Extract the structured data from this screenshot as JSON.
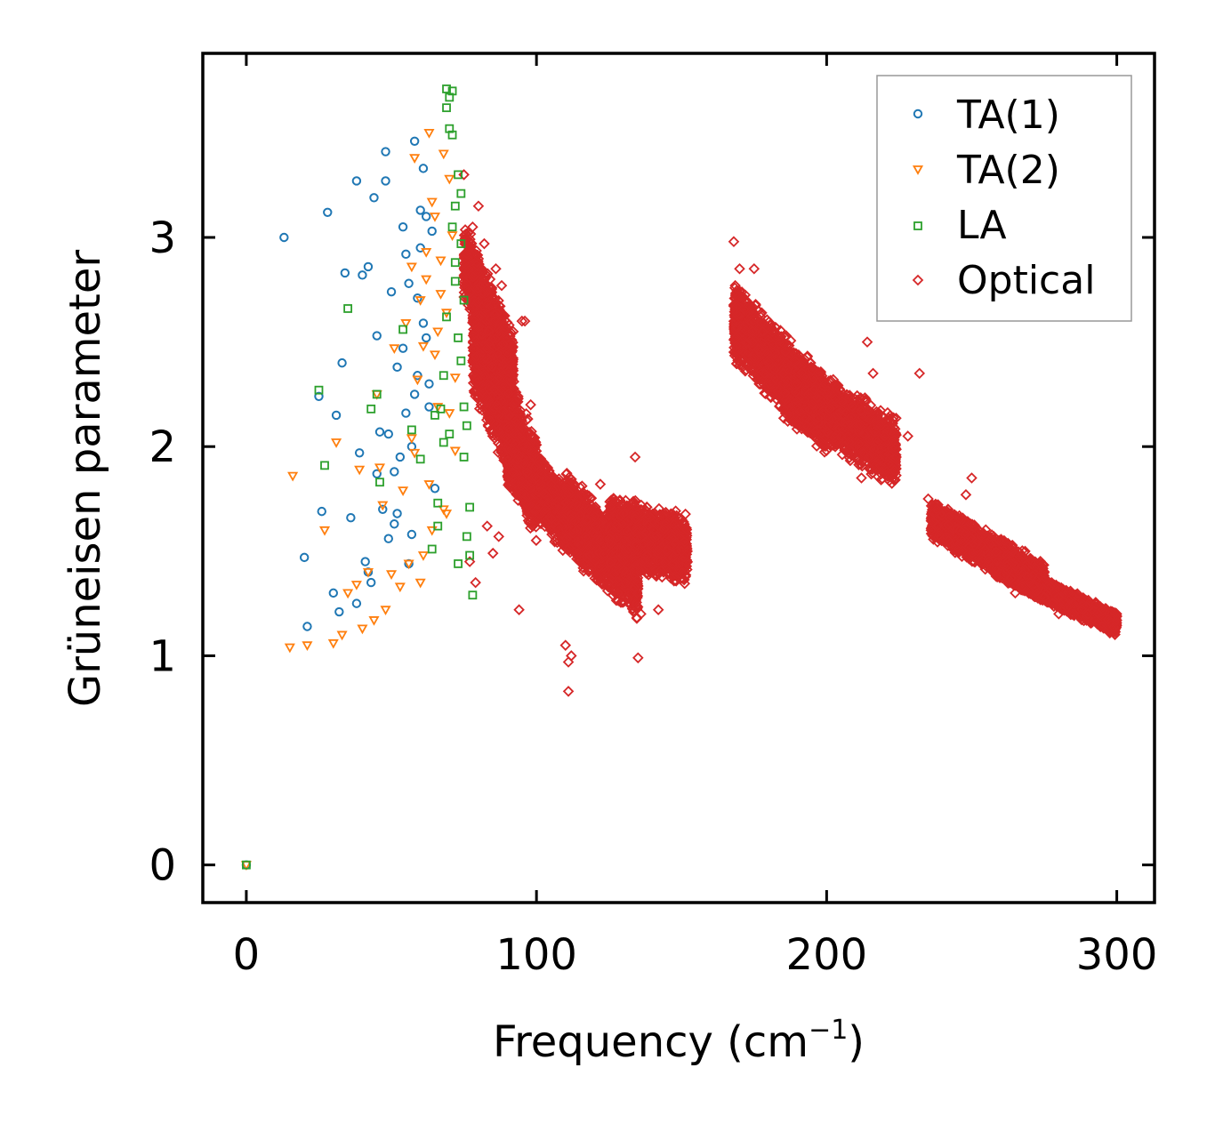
{
  "chart_data": {
    "type": "scatter",
    "title": "",
    "xlabel": "Frequency (cm",
    "xlabel_sup": "−1",
    "xlabel_end": ")",
    "ylabel": "Grüneisen parameter",
    "xlim": [
      -15,
      313
    ],
    "ylim": [
      -0.18,
      3.88
    ],
    "xticks": [
      0,
      100,
      200,
      300
    ],
    "xtick_labels": [
      "0",
      "100",
      "200",
      "300"
    ],
    "yticks": [
      0,
      1,
      2,
      3
    ],
    "ytick_labels": [
      "0",
      "1",
      "2",
      "3"
    ],
    "grid": false,
    "legend_position": "top-right",
    "series": [
      {
        "name": "TA(1)",
        "marker": "circle",
        "color": "#1f77b4",
        "x": [
          0,
          13,
          20,
          21,
          25,
          26,
          28,
          30,
          31,
          32,
          33,
          34,
          36,
          38,
          39,
          40,
          41,
          42,
          43,
          44,
          45,
          46,
          47,
          48,
          49,
          50,
          51,
          52,
          53,
          54,
          55,
          56,
          57,
          58,
          59,
          60,
          61,
          62,
          63,
          64,
          38,
          42,
          45,
          48,
          51,
          54,
          57,
          60,
          63,
          52,
          56,
          61,
          65,
          49,
          58,
          62,
          55,
          59
        ],
        "y": [
          0.0,
          3.0,
          1.47,
          1.14,
          2.24,
          1.69,
          3.12,
          1.3,
          2.15,
          1.21,
          2.4,
          2.83,
          1.66,
          3.27,
          1.97,
          2.82,
          1.45,
          2.86,
          1.35,
          3.19,
          1.87,
          2.07,
          1.7,
          3.41,
          1.56,
          2.74,
          1.88,
          2.38,
          1.95,
          2.47,
          2.16,
          2.78,
          1.58,
          3.46,
          2.34,
          2.95,
          3.33,
          3.1,
          2.3,
          3.03,
          1.25,
          1.4,
          2.53,
          3.27,
          1.63,
          3.05,
          2.0,
          3.13,
          2.19,
          1.68,
          1.44,
          2.59,
          1.8,
          2.06,
          2.25,
          2.52,
          2.92,
          2.71
        ]
      },
      {
        "name": "TA(2)",
        "marker": "triangle-down",
        "color": "#ff7f0e",
        "x": [
          0,
          15,
          16,
          21,
          27,
          30,
          31,
          33,
          35,
          38,
          39,
          40,
          42,
          44,
          45,
          46,
          47,
          48,
          50,
          51,
          53,
          54,
          55,
          56,
          57,
          58,
          59,
          60,
          61,
          62,
          63,
          64,
          65,
          66,
          67,
          68,
          69,
          70,
          71,
          72,
          60,
          62,
          64,
          66,
          68,
          70,
          58,
          61,
          65,
          69,
          72,
          67,
          63,
          57
        ],
        "y": [
          0.0,
          1.04,
          1.86,
          1.05,
          1.6,
          1.06,
          2.02,
          1.1,
          1.3,
          1.34,
          1.89,
          1.13,
          1.4,
          1.17,
          2.25,
          1.9,
          1.72,
          1.22,
          1.39,
          2.47,
          1.33,
          1.79,
          2.59,
          1.44,
          2.04,
          3.38,
          2.32,
          2.7,
          1.48,
          2.93,
          1.82,
          3.17,
          2.44,
          2.19,
          2.89,
          3.4,
          2.64,
          2.16,
          3.01,
          2.33,
          1.35,
          2.8,
          1.6,
          2.55,
          1.7,
          3.28,
          1.97,
          2.48,
          3.1,
          1.68,
          1.98,
          2.73,
          3.5,
          2.86
        ]
      },
      {
        "name": "LA",
        "marker": "square",
        "color": "#2ca02c",
        "x": [
          0,
          25,
          27,
          35,
          43,
          45,
          46,
          54,
          57,
          60,
          64,
          66,
          67,
          68,
          69,
          69,
          70,
          70,
          71,
          71,
          72,
          72,
          73,
          73,
          74,
          74,
          75,
          75,
          76,
          76,
          77,
          78,
          72,
          70,
          74,
          68,
          75,
          73,
          71,
          69,
          77,
          66,
          65
        ],
        "y": [
          0.0,
          2.27,
          1.91,
          2.66,
          2.18,
          2.25,
          1.83,
          2.56,
          2.08,
          1.94,
          1.51,
          1.62,
          2.18,
          2.34,
          3.71,
          3.62,
          3.52,
          3.67,
          3.49,
          3.05,
          3.15,
          2.88,
          3.3,
          2.52,
          2.97,
          2.41,
          2.7,
          2.19,
          2.1,
          1.57,
          1.48,
          1.29,
          2.79,
          2.06,
          3.21,
          2.02,
          1.95,
          1.44,
          3.7,
          2.62,
          1.71,
          1.73,
          2.15
        ]
      },
      {
        "name": "Optical",
        "marker": "diamond",
        "color": "#d62728",
        "clusters": [
          {
            "x_range": [
              75,
              92
            ],
            "y_line": [
              2.9,
              2.35
            ],
            "spread": 0.2
          },
          {
            "x_range": [
              78,
              100
            ],
            "y_line": [
              2.5,
              1.8
            ],
            "spread": 0.28
          },
          {
            "x_range": [
              90,
              118
            ],
            "y_line": [
              1.95,
              1.55
            ],
            "spread": 0.18
          },
          {
            "x_range": [
              110,
              135
            ],
            "y_line": [
              1.7,
              1.35
            ],
            "spread": 0.2
          },
          {
            "x_range": [
              125,
              152
            ],
            "y_line": [
              1.6,
              1.5
            ],
            "spread": 0.18
          },
          {
            "x_range": [
              168,
              200
            ],
            "y_line": [
              2.6,
              2.15
            ],
            "spread": 0.2
          },
          {
            "x_range": [
              185,
              224
            ],
            "y_line": [
              2.3,
              1.97
            ],
            "spread": 0.18
          },
          {
            "x_range": [
              236,
              275
            ],
            "y_line": [
              1.65,
              1.35
            ],
            "spread": 0.1
          },
          {
            "x_range": [
              262,
              300
            ],
            "y_line": [
              1.4,
              1.15
            ],
            "spread": 0.06
          }
        ],
        "x": [
          75,
          78,
          80,
          82,
          84,
          86,
          88,
          77,
          79,
          83,
          85,
          87,
          90,
          92,
          94,
          95,
          96,
          98,
          100,
          103,
          105,
          108,
          110,
          111,
          111,
          112,
          114,
          118,
          122,
          125,
          128,
          131,
          134,
          135,
          136,
          138,
          142,
          145,
          150,
          152,
          168,
          170,
          172,
          175,
          178,
          180,
          185,
          190,
          195,
          200,
          205,
          210,
          212,
          214,
          216,
          220,
          224,
          228,
          232,
          235,
          236,
          238,
          242,
          246,
          248,
          250,
          252,
          256,
          260,
          265,
          270,
          275,
          280,
          285,
          290,
          295,
          300
        ],
        "y": [
          3.3,
          3.05,
          3.15,
          2.97,
          2.8,
          2.85,
          2.77,
          1.45,
          1.35,
          1.62,
          1.49,
          1.57,
          2.45,
          2.55,
          1.22,
          2.6,
          2.6,
          2.2,
          1.85,
          1.7,
          1.6,
          1.55,
          1.05,
          0.97,
          0.83,
          1.0,
          1.6,
          1.7,
          1.82,
          1.35,
          1.3,
          1.4,
          1.95,
          0.99,
          1.2,
          1.55,
          1.22,
          1.5,
          1.5,
          1.5,
          2.98,
          2.85,
          2.7,
          2.85,
          2.55,
          2.4,
          2.35,
          2.3,
          2.2,
          2.25,
          2.05,
          2.0,
          1.85,
          2.5,
          2.35,
          2.05,
          1.95,
          2.05,
          2.35,
          1.75,
          1.6,
          1.7,
          1.55,
          1.6,
          1.77,
          1.85,
          1.5,
          1.45,
          1.43,
          1.3,
          1.35,
          1.28,
          1.2,
          1.25,
          1.2,
          1.14,
          1.17
        ]
      }
    ]
  }
}
